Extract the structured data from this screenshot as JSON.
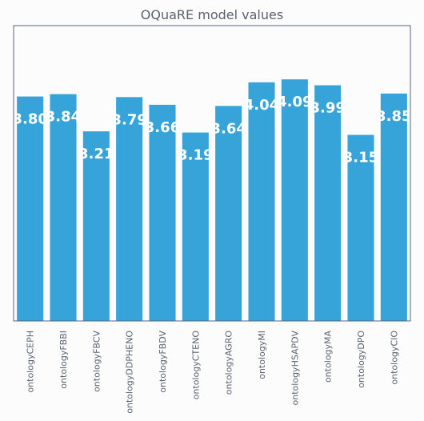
{
  "chart_data": {
    "type": "bar",
    "title": "OQuaRE model values",
    "xlabel": "",
    "ylabel": "",
    "categories": [
      "ontologyCEPH",
      "ontologyFBBI",
      "ontologyFBCV",
      "ontologyDDPHENO",
      "ontologyFBDV",
      "ontologyCTENO",
      "ontologyAGRO",
      "ontologyMI",
      "ontologyHSAPDV",
      "ontologyMA",
      "ontologyDPO",
      "ontologyCIO"
    ],
    "values": [
      3.8,
      3.84,
      3.21,
      3.79,
      3.66,
      3.19,
      3.64,
      4.04,
      4.09,
      3.99,
      3.15,
      3.85
    ],
    "data_labels": [
      "3.80",
      "3.84",
      "3.21",
      "3.79",
      "3.66",
      "3.19",
      "3.64",
      "4.04",
      "4.09",
      "3.99",
      "3.15",
      "3.85"
    ],
    "ylim": [
      0,
      5
    ],
    "bar_color": "#36a4d9",
    "frame_color": "#5a6280",
    "grid": false,
    "legend": false,
    "y_axis_visible": false
  }
}
